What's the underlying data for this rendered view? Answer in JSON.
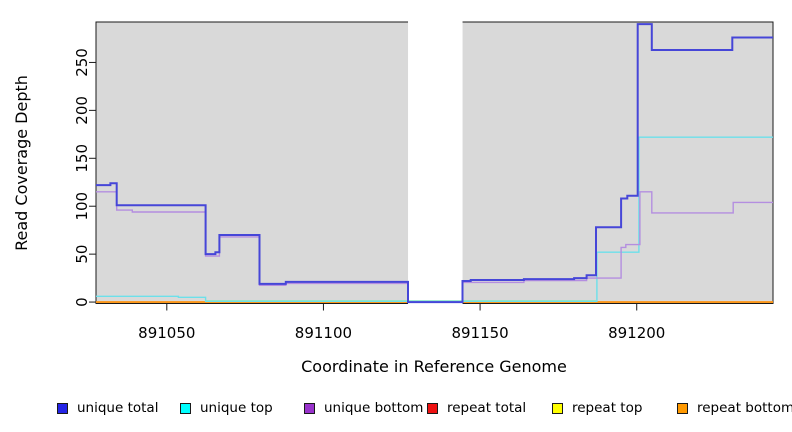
{
  "chart_data": {
    "type": "line",
    "subtype": "step",
    "title": "",
    "xlabel": "Coordinate in Reference Genome",
    "ylabel": "Read Coverage Depth",
    "xlim": [
      891027.4,
      891243.5
    ],
    "ylim": [
      -1.5,
      292.2
    ],
    "x_ticks": [
      891050,
      891100,
      891150,
      891200
    ],
    "y_ticks": [
      0,
      50,
      100,
      150,
      200,
      250
    ],
    "grid": false,
    "plot_bg": "#d9d9d9",
    "frame_color": "#1a1a1a",
    "no_data_band": {
      "x_start": 891127,
      "x_end": 891144.4,
      "fill": "#ffffff"
    },
    "series": [
      {
        "name": "repeat total",
        "color": "#e21212",
        "width": 1.4,
        "points": [
          [
            891027.4,
            0
          ]
        ]
      },
      {
        "name": "repeat top",
        "color": "#f5e400",
        "width": 1.4,
        "points": [
          [
            891027.4,
            0
          ]
        ]
      },
      {
        "name": "repeat bottom",
        "color": "#ff9414",
        "width": 1.6,
        "points": [
          [
            891027.4,
            0
          ]
        ]
      },
      {
        "name": "zero coverage blend",
        "color": "#90ee90",
        "width": 1.3,
        "points": [
          [
            891062.4,
            1.2
          ]
        ],
        "end_x": 891187
      },
      {
        "name": "unique top",
        "color": "#6ce0ea",
        "width": 1.4,
        "points": [
          [
            891027.4,
            6
          ],
          [
            891053.7,
            5
          ],
          [
            891062.4,
            0.8
          ],
          [
            891187.3,
            52
          ],
          [
            891200.7,
            172
          ]
        ]
      },
      {
        "name": "unique bottom",
        "color": "#b48ee0",
        "width": 1.4,
        "points": [
          [
            891027.4,
            115
          ],
          [
            891034,
            96
          ],
          [
            891039,
            94
          ],
          [
            891062.4,
            48
          ],
          [
            891066.8,
            68
          ],
          [
            891079.6,
            17.5
          ],
          [
            891088,
            19.5
          ],
          [
            891127,
            0
          ],
          [
            891144.4,
            20.5
          ],
          [
            891164,
            22.5
          ],
          [
            891184,
            25
          ],
          [
            891195,
            57
          ],
          [
            891196.5,
            60
          ],
          [
            891201,
            115
          ],
          [
            891204.8,
            93
          ],
          [
            891230.8,
            104
          ]
        ]
      },
      {
        "name": "unique total",
        "color": "#4646d8",
        "width": 2,
        "points": [
          [
            891027.4,
            122
          ],
          [
            891032,
            124
          ],
          [
            891034,
            101
          ],
          [
            891062.4,
            50
          ],
          [
            891065.5,
            52
          ],
          [
            891066.8,
            70
          ],
          [
            891079.6,
            19
          ],
          [
            891088,
            21
          ],
          [
            891127,
            0
          ],
          [
            891144.4,
            22
          ],
          [
            891147,
            23
          ],
          [
            891164,
            24
          ],
          [
            891180,
            25
          ],
          [
            891184,
            28
          ],
          [
            891187,
            78
          ],
          [
            891195,
            108
          ],
          [
            891197,
            111
          ],
          [
            891200.3,
            290
          ],
          [
            891204.8,
            263
          ],
          [
            891230.5,
            276
          ]
        ]
      }
    ],
    "legend": [
      {
        "label": "unique total",
        "color": "#2424e6"
      },
      {
        "label": "unique top",
        "color": "#00ffff"
      },
      {
        "label": "unique bottom",
        "color": "#9933cc"
      },
      {
        "label": "repeat total",
        "color": "#ee1111"
      },
      {
        "label": "repeat top",
        "color": "#ffff00"
      },
      {
        "label": "repeat bottom",
        "color": "#ff9900"
      }
    ],
    "legend_position": "bottom"
  }
}
